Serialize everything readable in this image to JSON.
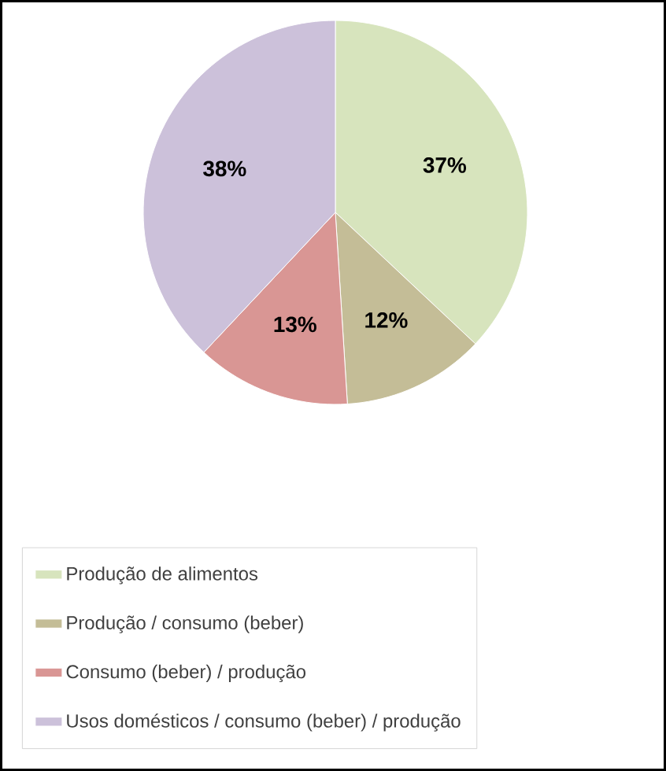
{
  "chart_data": {
    "type": "pie",
    "categories": [
      "Produção de alimentos",
      "Produção / consumo (beber)",
      "Consumo (beber) / produção",
      "Usos domésticos / consumo (beber) / produção"
    ],
    "values": [
      37,
      12,
      13,
      38
    ],
    "colors": [
      "#d7e4bd",
      "#c4bd97",
      "#d99694",
      "#ccc1da"
    ],
    "value_labels": [
      "37%",
      "12%",
      "13%",
      "38%"
    ],
    "legend": "bottom"
  }
}
